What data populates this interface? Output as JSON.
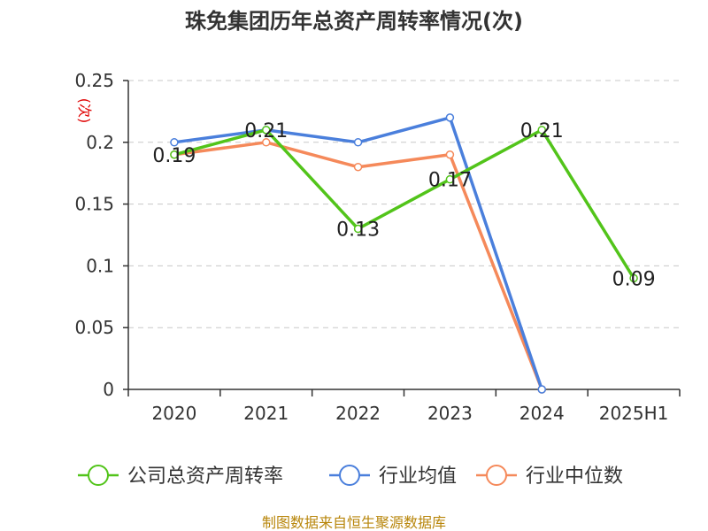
{
  "chart_data": {
    "type": "line",
    "title": "珠免集团历年总资产周转率情况(次)",
    "ylabel": "(次)",
    "xlabel": "",
    "categories": [
      "2020",
      "2021",
      "2022",
      "2023",
      "2024",
      "2025H1"
    ],
    "ylim": [
      0,
      0.25
    ],
    "yticks": [
      "0",
      "0.05",
      "0.1",
      "0.15",
      "0.2",
      "0.25"
    ],
    "grid": true,
    "legend_position": "bottom",
    "series": [
      {
        "name": "公司总资产周转率",
        "color": "#52c41a",
        "values": [
          0.19,
          0.21,
          0.13,
          0.17,
          0.21,
          0.09
        ],
        "labels": [
          "0.19",
          "0.21",
          "0.13",
          "0.17",
          "0.21",
          "0.09"
        ]
      },
      {
        "name": "行业均值",
        "color": "#4a7fdc",
        "values": [
          0.2,
          0.21,
          0.2,
          0.22,
          0.0,
          null
        ]
      },
      {
        "name": "行业中位数",
        "color": "#f5895a",
        "values": [
          0.19,
          0.2,
          0.18,
          0.19,
          0.0,
          null
        ]
      }
    ],
    "source": "制图数据来自恒生聚源数据库"
  }
}
